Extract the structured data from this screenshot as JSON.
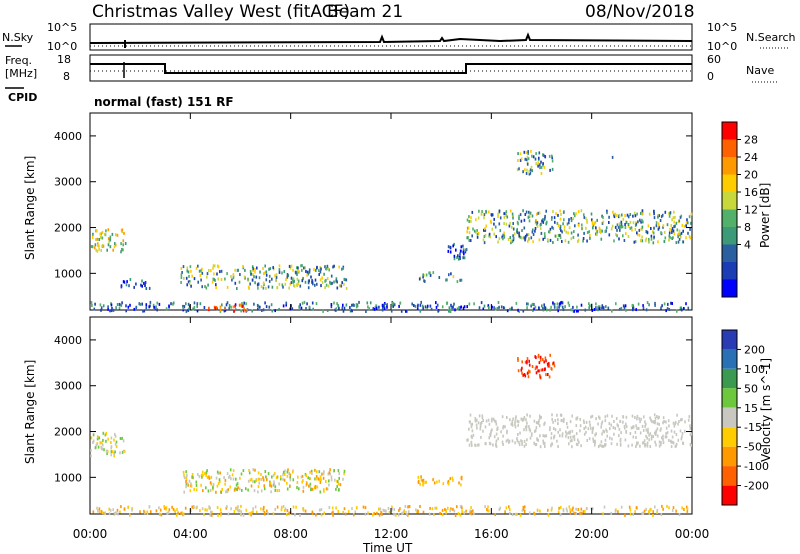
{
  "header": {
    "title": "Christmas Valley West (fitACF)",
    "beam": "Beam 21",
    "date": "08/Nov/2018"
  },
  "noise_panel": {
    "left_label": "N.Sky",
    "left_ticks": [
      "10^5",
      "10^0"
    ],
    "right_ticks": [
      "10^5",
      "10^0"
    ],
    "right_label": "N.Search"
  },
  "freq_panel": {
    "left_label_line1": "Freq.",
    "left_label_line2": "[MHz]",
    "left_ticks": [
      "18",
      "8"
    ],
    "right_ticks": [
      "60",
      "0"
    ],
    "right_label": "Nave",
    "cpid_label": "CPID",
    "cpid_text": "normal (fast) 151 RF"
  },
  "time_axis": {
    "ticks": [
      "00:00",
      "04:00",
      "08:00",
      "12:00",
      "16:00",
      "20:00",
      "00:00"
    ],
    "label": "Time UT"
  },
  "chart_data": [
    {
      "type": "heatmap",
      "panel": "power",
      "ylabel": "Slant Range [km]",
      "y_ticks": [
        1000,
        2000,
        3000,
        4000
      ],
      "ylim": [
        200,
        4500
      ],
      "xlim_hours": [
        0,
        24
      ],
      "colorbar_label": "Power [dB]",
      "colorbar_ticks": [
        "28",
        "24",
        "20",
        "16",
        "12",
        "8",
        "4"
      ],
      "colorbar_colors": [
        "#ff0000",
        "#ff6000",
        "#ff9900",
        "#ffcc00",
        "#c8d83c",
        "#52b06a",
        "#3c9a78",
        "#2a5fa0",
        "#1a3cb4",
        "#0000ff"
      ],
      "regions": [
        {
          "t0": 0.0,
          "t1": 1.4,
          "r0": 1500,
          "r1": 2000,
          "level": "high"
        },
        {
          "t0": 1.2,
          "t1": 2.4,
          "r0": 700,
          "r1": 900,
          "level": "low"
        },
        {
          "t0": 3.6,
          "t1": 10.2,
          "r0": 700,
          "r1": 1200,
          "level": "mid"
        },
        {
          "t0": 13.0,
          "t1": 14.8,
          "r0": 850,
          "r1": 1050,
          "level": "mid"
        },
        {
          "t0": 14.2,
          "t1": 15.0,
          "r0": 1300,
          "r1": 1700,
          "level": "low"
        },
        {
          "t0": 15.0,
          "t1": 24.0,
          "r0": 1700,
          "r1": 2400,
          "level": "mid"
        },
        {
          "t0": 17.0,
          "t1": 18.5,
          "r0": 3200,
          "r1": 3700,
          "level": "mid"
        },
        {
          "t0": 20.5,
          "t1": 21.0,
          "r0": 3500,
          "r1": 3600,
          "level": "low"
        },
        {
          "t0": 0.0,
          "t1": 24.0,
          "r0": 200,
          "r1": 400,
          "level": "ground"
        },
        {
          "t0": 4.5,
          "t1": 6.5,
          "r0": 200,
          "r1": 350,
          "level": "peak"
        }
      ]
    },
    {
      "type": "heatmap",
      "panel": "velocity",
      "ylabel": "Slant Range [km]",
      "y_ticks": [
        1000,
        2000,
        3000,
        4000
      ],
      "ylim": [
        200,
        4500
      ],
      "xlim_hours": [
        0,
        24
      ],
      "colorbar_label": "Velocity [m s^-1]",
      "colorbar_ticks": [
        "200",
        "100",
        "50",
        "15",
        "-15",
        "-50",
        "-100",
        "-200"
      ],
      "colorbar_colors": [
        "#2a3cb4",
        "#2a70b4",
        "#3c9a50",
        "#6cc83c",
        "#c8c8c0",
        "#ffcc00",
        "#ff9900",
        "#ff6000",
        "#ff0000"
      ],
      "regions": [
        {
          "t0": 0.0,
          "t1": 1.4,
          "r0": 1500,
          "r1": 2000,
          "level": "slow-toward"
        },
        {
          "t0": 3.6,
          "t1": 10.2,
          "r0": 700,
          "r1": 1200,
          "level": "mixed"
        },
        {
          "t0": 13.0,
          "t1": 14.8,
          "r0": 850,
          "r1": 1050,
          "level": "away"
        },
        {
          "t0": 15.0,
          "t1": 24.0,
          "r0": 1700,
          "r1": 2400,
          "level": "near-zero"
        },
        {
          "t0": 17.0,
          "t1": 18.5,
          "r0": 3200,
          "r1": 3700,
          "level": "strong-away"
        },
        {
          "t0": 0.0,
          "t1": 24.0,
          "r0": 200,
          "r1": 400,
          "level": "ground"
        }
      ]
    }
  ]
}
